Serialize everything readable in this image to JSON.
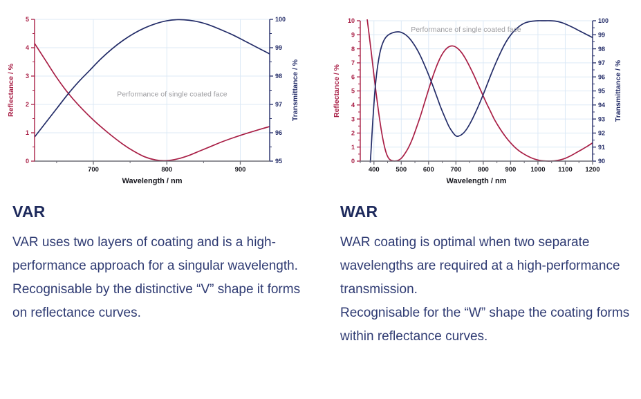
{
  "colors": {
    "reflectance": "#a81e45",
    "transmittance": "#232c68",
    "grid": "#dce9f6",
    "axis_bottom": "#6b6b74",
    "x_tick_label": "#16161d",
    "annotation": "#9c9ca0",
    "heading": "#1e2a5c",
    "body_text": "#2e3a72"
  },
  "chart_data": [
    {
      "id": "var",
      "type": "line",
      "annotation": "Performance of single coated face",
      "annotation_pos": {
        "x": 0.585,
        "y": 0.53
      },
      "xlabel": "Wavelength / nm",
      "xlim": [
        620,
        940
      ],
      "x_ticks": [
        700,
        800,
        900
      ],
      "x_minor_step": 50,
      "axis_left": {
        "label": "Reflectance / %",
        "min": 0,
        "max": 5,
        "ticks": [
          0,
          1,
          2,
          3,
          4,
          5
        ],
        "minor_step": 0.5
      },
      "axis_right": {
        "label": "Transmittance / %",
        "min": 95,
        "max": 100,
        "ticks": [
          95,
          96,
          97,
          98,
          99,
          100
        ],
        "minor_step": 0.5
      },
      "series": [
        {
          "name": "reflectance",
          "axis": "left",
          "color_key": "reflectance",
          "points": [
            [
              620,
              4.15
            ],
            [
              635,
              3.55
            ],
            [
              650,
              2.95
            ],
            [
              665,
              2.42
            ],
            [
              680,
              1.97
            ],
            [
              700,
              1.45
            ],
            [
              720,
              1.0
            ],
            [
              740,
              0.6
            ],
            [
              755,
              0.35
            ],
            [
              770,
              0.15
            ],
            [
              785,
              0.04
            ],
            [
              800,
              0.02
            ],
            [
              815,
              0.08
            ],
            [
              830,
              0.2
            ],
            [
              845,
              0.36
            ],
            [
              860,
              0.52
            ],
            [
              875,
              0.68
            ],
            [
              890,
              0.82
            ],
            [
              905,
              0.95
            ],
            [
              920,
              1.07
            ],
            [
              940,
              1.22
            ]
          ]
        },
        {
          "name": "transmittance",
          "axis": "right",
          "color_key": "transmittance",
          "points": [
            [
              620,
              95.85
            ],
            [
              635,
              96.35
            ],
            [
              650,
              96.85
            ],
            [
              665,
              97.35
            ],
            [
              680,
              97.8
            ],
            [
              695,
              98.2
            ],
            [
              710,
              98.6
            ],
            [
              725,
              98.95
            ],
            [
              740,
              99.25
            ],
            [
              755,
              99.5
            ],
            [
              770,
              99.7
            ],
            [
              785,
              99.85
            ],
            [
              800,
              99.95
            ],
            [
              815,
              99.99
            ],
            [
              830,
              99.97
            ],
            [
              845,
              99.9
            ],
            [
              860,
              99.78
            ],
            [
              875,
              99.62
            ],
            [
              890,
              99.45
            ],
            [
              905,
              99.25
            ],
            [
              920,
              99.05
            ],
            [
              940,
              98.78
            ]
          ]
        }
      ]
    },
    {
      "id": "war",
      "type": "line",
      "annotation": "Performance of single coated face",
      "annotation_pos": {
        "x": 0.455,
        "y": 0.065
      },
      "xlabel": "Wavelength / nm",
      "xlim": [
        350,
        1200
      ],
      "x_ticks": [
        400,
        500,
        600,
        700,
        800,
        900,
        1000,
        1100,
        1200
      ],
      "x_minor_step": 50,
      "axis_left": {
        "label": "Reflectance / %",
        "min": 0,
        "max": 10,
        "ticks": [
          0,
          1,
          2,
          3,
          4,
          5,
          6,
          7,
          8,
          9,
          10
        ],
        "minor_step": 0.5
      },
      "axis_right": {
        "label": "Transmittance / %",
        "min": 90,
        "max": 100,
        "ticks": [
          90,
          91,
          92,
          93,
          94,
          95,
          96,
          97,
          98,
          99,
          100
        ],
        "minor_step": 0.5
      },
      "series": [
        {
          "name": "reflectance",
          "axis": "left",
          "color_key": "reflectance",
          "points": [
            [
              372,
              10.6
            ],
            [
              378,
              9.7
            ],
            [
              384,
              8.75
            ],
            [
              390,
              7.8
            ],
            [
              396,
              6.8
            ],
            [
              402,
              5.8
            ],
            [
              408,
              4.85
            ],
            [
              414,
              3.95
            ],
            [
              420,
              3.1
            ],
            [
              427,
              2.2
            ],
            [
              434,
              1.45
            ],
            [
              441,
              0.85
            ],
            [
              448,
              0.42
            ],
            [
              456,
              0.15
            ],
            [
              465,
              0.04
            ],
            [
              476,
              0.01
            ],
            [
              488,
              0.05
            ],
            [
              500,
              0.2
            ],
            [
              512,
              0.5
            ],
            [
              526,
              0.95
            ],
            [
              540,
              1.55
            ],
            [
              555,
              2.35
            ],
            [
              570,
              3.2
            ],
            [
              585,
              4.15
            ],
            [
              600,
              5.1
            ],
            [
              615,
              6.0
            ],
            [
              630,
              6.8
            ],
            [
              645,
              7.45
            ],
            [
              660,
              7.9
            ],
            [
              675,
              8.15
            ],
            [
              690,
              8.2
            ],
            [
              705,
              8.05
            ],
            [
              720,
              7.75
            ],
            [
              735,
              7.3
            ],
            [
              750,
              6.75
            ],
            [
              765,
              6.15
            ],
            [
              780,
              5.5
            ],
            [
              795,
              4.85
            ],
            [
              810,
              4.2
            ],
            [
              825,
              3.6
            ],
            [
              840,
              3.0
            ],
            [
              855,
              2.5
            ],
            [
              870,
              2.05
            ],
            [
              885,
              1.65
            ],
            [
              900,
              1.3
            ],
            [
              915,
              1.0
            ],
            [
              930,
              0.75
            ],
            [
              945,
              0.55
            ],
            [
              960,
              0.38
            ],
            [
              975,
              0.24
            ],
            [
              990,
              0.13
            ],
            [
              1005,
              0.06
            ],
            [
              1020,
              0.02
            ],
            [
              1040,
              0.0
            ],
            [
              1060,
              0.02
            ],
            [
              1080,
              0.08
            ],
            [
              1100,
              0.2
            ],
            [
              1120,
              0.38
            ],
            [
              1140,
              0.6
            ],
            [
              1160,
              0.82
            ],
            [
              1180,
              1.05
            ],
            [
              1200,
              1.3
            ]
          ]
        },
        {
          "name": "transmittance",
          "axis": "right",
          "color_key": "transmittance",
          "points": [
            [
              386,
              89.7
            ],
            [
              389,
              90.6
            ],
            [
              392,
              91.6
            ],
            [
              395,
              92.6
            ],
            [
              398,
              93.5
            ],
            [
              402,
              94.6
            ],
            [
              406,
              95.5
            ],
            [
              411,
              96.4
            ],
            [
              417,
              97.2
            ],
            [
              424,
              97.9
            ],
            [
              432,
              98.4
            ],
            [
              441,
              98.75
            ],
            [
              452,
              98.98
            ],
            [
              465,
              99.12
            ],
            [
              480,
              99.2
            ],
            [
              495,
              99.2
            ],
            [
              510,
              99.08
            ],
            [
              525,
              98.85
            ],
            [
              540,
              98.5
            ],
            [
              555,
              98.05
            ],
            [
              570,
              97.5
            ],
            [
              585,
              96.85
            ],
            [
              600,
              96.15
            ],
            [
              615,
              95.4
            ],
            [
              630,
              94.6
            ],
            [
              645,
              93.8
            ],
            [
              660,
              93.1
            ],
            [
              675,
              92.45
            ],
            [
              690,
              92.0
            ],
            [
              700,
              91.8
            ],
            [
              710,
              91.78
            ],
            [
              725,
              91.95
            ],
            [
              740,
              92.3
            ],
            [
              755,
              92.8
            ],
            [
              770,
              93.4
            ],
            [
              785,
              94.05
            ],
            [
              800,
              94.75
            ],
            [
              815,
              95.5
            ],
            [
              830,
              96.25
            ],
            [
              845,
              96.95
            ],
            [
              860,
              97.6
            ],
            [
              875,
              98.2
            ],
            [
              890,
              98.7
            ],
            [
              905,
              99.1
            ],
            [
              920,
              99.4
            ],
            [
              935,
              99.65
            ],
            [
              950,
              99.82
            ],
            [
              965,
              99.92
            ],
            [
              980,
              99.97
            ],
            [
              1000,
              100.0
            ],
            [
              1020,
              100.0
            ],
            [
              1045,
              100.0
            ],
            [
              1065,
              99.97
            ],
            [
              1085,
              99.88
            ],
            [
              1105,
              99.73
            ],
            [
              1125,
              99.55
            ],
            [
              1145,
              99.35
            ],
            [
              1165,
              99.15
            ],
            [
              1185,
              98.95
            ],
            [
              1200,
              98.8
            ]
          ]
        }
      ]
    }
  ],
  "sections": [
    {
      "heading": "VAR",
      "paragraphs": [
        "VAR uses two layers of coating and is a high-performance approach for a singular wavelength.",
        "Recognisable by the distinctive “V” shape it forms on reflectance curves."
      ]
    },
    {
      "heading": "WAR",
      "paragraphs": [
        "WAR coating is optimal when two separate wavelengths are required at a high-performance transmission.",
        "Recognisable for the “W” shape the coating forms within reflectance curves."
      ]
    }
  ]
}
